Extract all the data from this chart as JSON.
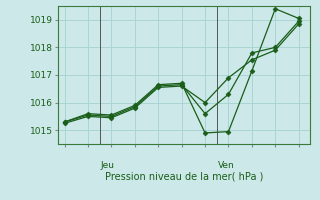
{
  "title": "",
  "xlabel": "Pression niveau de la mer( hPa )",
  "ylabel": "",
  "background_color": "#cce8e8",
  "grid_color": "#aad4d4",
  "line_color": "#1a5e1a",
  "ylim": [
    1014.5,
    1019.5
  ],
  "yticks": [
    1015,
    1016,
    1017,
    1018,
    1019
  ],
  "line1_x": [
    0,
    1,
    2,
    3,
    4,
    5,
    6,
    7,
    8,
    9,
    10
  ],
  "line1_y": [
    1015.3,
    1015.6,
    1015.55,
    1015.9,
    1016.65,
    1016.7,
    1014.9,
    1014.95,
    1017.15,
    1019.4,
    1019.05
  ],
  "line2_x": [
    0,
    1,
    2,
    3,
    4,
    5,
    6,
    7,
    8,
    9,
    10
  ],
  "line2_y": [
    1015.3,
    1015.55,
    1015.5,
    1015.85,
    1016.6,
    1016.65,
    1015.6,
    1016.3,
    1017.8,
    1018.0,
    1018.95
  ],
  "line3_x": [
    0,
    1,
    2,
    3,
    4,
    5,
    6,
    7,
    8,
    9,
    10
  ],
  "line3_y": [
    1015.25,
    1015.5,
    1015.45,
    1015.8,
    1016.55,
    1016.6,
    1016.0,
    1016.9,
    1017.55,
    1017.9,
    1018.85
  ],
  "jeu_x": 1.5,
  "ven_x": 6.5,
  "xlim": [
    -0.3,
    10.5
  ]
}
